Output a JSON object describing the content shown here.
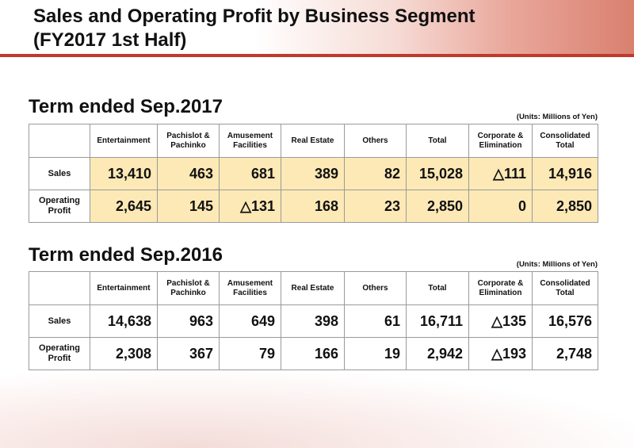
{
  "title_line1": "Sales and Operating Profit by Business Segment",
  "title_line2": "(FY2017 1st Half)",
  "columns": [
    "Entertainment",
    "Pachislot &\nPachinko",
    "Amusement\nFacilities",
    "Real Estate",
    "Others",
    "Total",
    "Corporate &\nElimination",
    "Consolidated\nTotal"
  ],
  "units": "(Units: Millions of Yen)",
  "tables": [
    {
      "heading": "Term ended Sep.2017",
      "rows": [
        {
          "label": "Sales",
          "values": [
            "13,410",
            "463",
            "681",
            "389",
            "82",
            "15,028",
            "△111",
            "14,916"
          ]
        },
        {
          "label": "Operating\nProfit",
          "values": [
            "2,645",
            "145",
            "△131",
            "168",
            "23",
            "2,850",
            "0",
            "2,850"
          ]
        }
      ]
    },
    {
      "heading": "Term ended Sep.2016",
      "rows": [
        {
          "label": "Sales",
          "values": [
            "14,638",
            "963",
            "649",
            "398",
            "61",
            "16,711",
            "△135",
            "16,576"
          ]
        },
        {
          "label": "Operating\nProfit",
          "values": [
            "2,308",
            "367",
            "79",
            "166",
            "19",
            "2,942",
            "△193",
            "2,748"
          ]
        }
      ]
    }
  ],
  "colors": {
    "highlight": "#fde9b6",
    "accent": "#c0392b"
  }
}
